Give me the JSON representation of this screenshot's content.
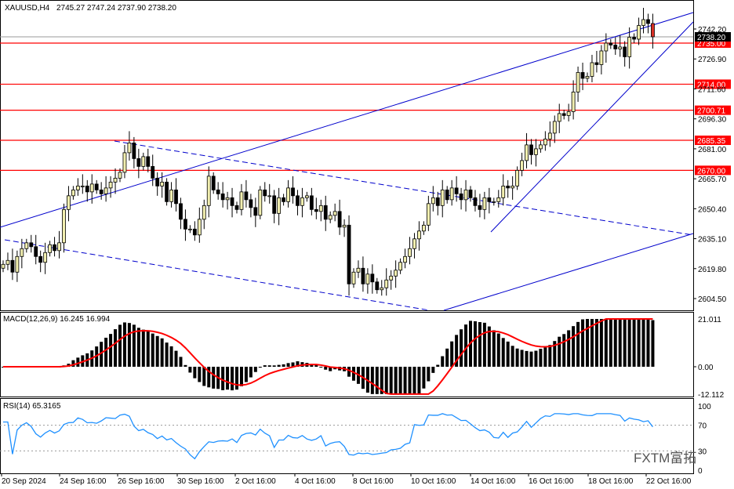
{
  "header": {
    "symbol_label": "XAUUSD,H4",
    "ohlc_label": "2745.27 2747.24 2737.90 2738.20"
  },
  "colors": {
    "background": "#ffffff",
    "bull_candle": "#f2efb0",
    "bear_candle": "#d93025",
    "wick": "#000000",
    "support_resistance": "#ff0000",
    "trendline": "#0000cc",
    "macd_hist": "#000000",
    "macd_signal": "#ff0000",
    "rsi_line": "#1e90ff",
    "current_price_box": "#000000"
  },
  "chart_data": [
    {
      "type": "candlestick",
      "title": "XAUUSD,H4",
      "y_ticks": [
        "2742.20",
        "2726.90",
        "2711.60",
        "2696.30",
        "2681.00",
        "2665.70",
        "2650.40",
        "2635.10",
        "2619.80",
        "2604.50"
      ],
      "ylim": [
        2598,
        2752
      ],
      "x_ticks": [
        "20 Sep 2024",
        "24 Sep 16:00",
        "26 Sep 16:00",
        "30 Sep 16:00",
        "2 Oct 16:00",
        "4 Oct 16:00",
        "8 Oct 16:00",
        "10 Oct 16:00",
        "14 Oct 16:00",
        "16 Oct 16:00",
        "18 Oct 16:00",
        "22 Oct 16:00"
      ],
      "current_price": "2738.20",
      "levels": [
        "2735.00",
        "2714.00",
        "2700.71",
        "2685.35",
        "2670.00"
      ],
      "closes": [
        2622,
        2624,
        2618,
        2626,
        2630,
        2633,
        2631,
        2626,
        2623,
        2628,
        2632,
        2629,
        2633,
        2650,
        2657,
        2660,
        2662,
        2662,
        2659,
        2663,
        2660,
        2658,
        2661,
        2664,
        2666,
        2669,
        2679,
        2684,
        2676,
        2672,
        2677,
        2672,
        2666,
        2662,
        2664,
        2654,
        2660,
        2653,
        2645,
        2640,
        2640,
        2637,
        2645,
        2652,
        2667,
        2660,
        2658,
        2655,
        2656,
        2652,
        2650,
        2659,
        2655,
        2651,
        2647,
        2660,
        2657,
        2657,
        2648,
        2656,
        2654,
        2661,
        2657,
        2652,
        2656,
        2657,
        2650,
        2649,
        2652,
        2645,
        2647,
        2649,
        2641,
        2642,
        2612,
        2618,
        2620,
        2612,
        2617,
        2613,
        2609,
        2610,
        2614,
        2616,
        2619,
        2623,
        2626,
        2630,
        2635,
        2639,
        2642,
        2653,
        2656,
        2652,
        2660,
        2655,
        2661,
        2658,
        2655,
        2660,
        2656,
        2652,
        2650,
        2656,
        2654,
        2654,
        2656,
        2662,
        2661,
        2662,
        2670,
        2675,
        2683,
        2678,
        2681,
        2683,
        2686,
        2689,
        2695,
        2699,
        2698,
        2700,
        2710,
        2720,
        2717,
        2718,
        2725,
        2724,
        2731,
        2735,
        2734,
        2732,
        2733,
        2728,
        2738,
        2737,
        2744,
        2747,
        2745,
        2738.2
      ],
      "trendlines": "upper ascending line, descending dashed channel, rising support lines"
    },
    {
      "type": "bar",
      "title": "MACD(12,26,9) 16.245 16.994",
      "y_ticks": [
        "21.011",
        "0.00",
        "-12.112"
      ],
      "ylim": [
        -12.112,
        21.011
      ],
      "series": [
        {
          "name": "MACD",
          "values": "histogram per bar"
        },
        {
          "name": "Signal",
          "values": "red line"
        }
      ]
    },
    {
      "type": "line",
      "title": "RSI(14) 65.3165",
      "y_ticks": [
        "100",
        "70",
        "30",
        "0"
      ],
      "ylim": [
        0,
        100
      ],
      "guide_levels": [
        70,
        30
      ],
      "series": [
        {
          "name": "RSI",
          "values": "per bar"
        }
      ]
    }
  ],
  "watermark": "FXTM富拓"
}
